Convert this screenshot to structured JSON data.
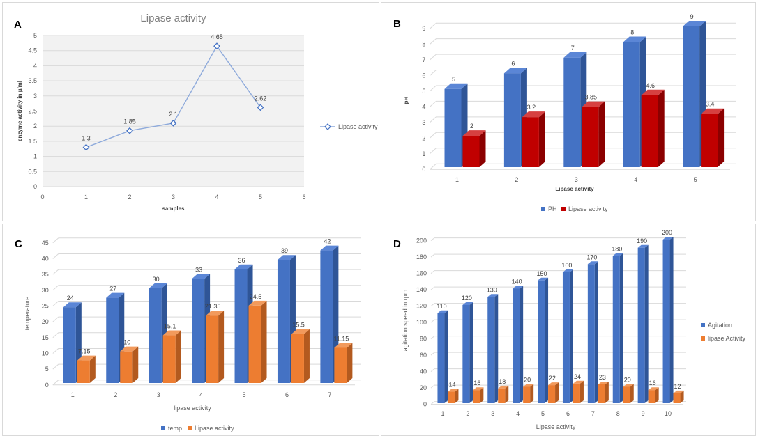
{
  "colors": {
    "line": "#8eaadb",
    "marker": "#4472c4",
    "blue_front": "#4472c4",
    "blue_side": "#2f5597",
    "blue_top": "#5b86d6",
    "red_front": "#c00000",
    "red_side": "#8b0000",
    "red_top": "#d64040",
    "orange_front": "#ed7d31",
    "orange_side": "#b35a1f",
    "orange_top": "#f29a5c",
    "grid": "#d9d9d9"
  },
  "chart_data": [
    {
      "id": "A",
      "panel_letter": "A",
      "type": "line",
      "title": "Lipase activity",
      "xlabel": "samples",
      "ylabel": "enzyme activity in µ/ml",
      "x": [
        1,
        2,
        3,
        4,
        5
      ],
      "xlim": [
        0,
        6
      ],
      "xticks": [
        "0",
        "1",
        "2",
        "3",
        "4",
        "5",
        "6"
      ],
      "ylim": [
        0,
        5
      ],
      "yticks": [
        "0",
        "0.5",
        "1",
        "1.5",
        "2",
        "2.5",
        "3",
        "3.5",
        "4",
        "4.5",
        "5"
      ],
      "series": [
        {
          "name": "Lipase activity",
          "values": [
            1.3,
            1.85,
            2.1,
            4.65,
            2.62
          ],
          "labels": [
            "1.3",
            "1.85",
            "2.1",
            "4.65",
            "2.62"
          ]
        }
      ],
      "grid": true,
      "legend": "right"
    },
    {
      "id": "B",
      "panel_letter": "B",
      "type": "bar",
      "title": "",
      "xlabel": "Lipase activity",
      "ylabel": "pH",
      "categories": [
        "1",
        "2",
        "3",
        "4",
        "5"
      ],
      "ylim": [
        0,
        9
      ],
      "yticks": [
        "0",
        "1",
        "2",
        "3",
        "4",
        "5",
        "6",
        "7",
        "8",
        "9"
      ],
      "series": [
        {
          "name": "PH",
          "values": [
            5,
            6,
            7,
            8,
            9
          ],
          "labels": [
            "5",
            "6",
            "7",
            "8",
            "9"
          ]
        },
        {
          "name": "Lipase activity",
          "values": [
            2,
            3.2,
            3.85,
            4.6,
            3.4
          ],
          "labels": [
            "2",
            "3.2",
            "3.85",
            "4.6",
            "3.4"
          ]
        }
      ],
      "grid": true,
      "legend": "bottom"
    },
    {
      "id": "C",
      "panel_letter": "C",
      "type": "bar",
      "title": "",
      "xlabel": "lipase activity",
      "ylabel": "temperature",
      "categories": [
        "1",
        "2",
        "3",
        "4",
        "5",
        "6",
        "7"
      ],
      "ylim": [
        0,
        45
      ],
      "yticks": [
        "0",
        "5",
        "10",
        "15",
        "20",
        "25",
        "30",
        "35",
        "40",
        "45"
      ],
      "series": [
        {
          "name": "temp",
          "values": [
            24,
            27,
            30,
            33,
            36,
            39,
            42
          ],
          "labels": [
            "24",
            "27",
            "30",
            "33",
            "36",
            "39",
            "42"
          ]
        },
        {
          "name": "Lipase activity",
          "values": [
            7.15,
            10,
            15.1,
            21.35,
            24.5,
            15.5,
            11.15
          ],
          "labels": [
            "7.15",
            "10",
            "15.1",
            "21.35",
            "24.5",
            "15.5",
            "11.15"
          ]
        }
      ],
      "grid": true,
      "legend": "bottom"
    },
    {
      "id": "D",
      "panel_letter": "D",
      "type": "bar",
      "title": "",
      "xlabel": "Lipase activity",
      "ylabel": "agitation speed in rpm",
      "categories": [
        "1",
        "2",
        "3",
        "4",
        "5",
        "6",
        "7",
        "8",
        "9",
        "10"
      ],
      "ylim": [
        0,
        200
      ],
      "yticks": [
        "0",
        "20",
        "40",
        "60",
        "80",
        "100",
        "120",
        "140",
        "160",
        "180",
        "200"
      ],
      "series": [
        {
          "name": "Agitation",
          "values": [
            110,
            120,
            130,
            140,
            150,
            160,
            170,
            180,
            190,
            200
          ],
          "labels": [
            "110",
            "120",
            "130",
            "140",
            "150",
            "160",
            "170",
            "180",
            "190",
            "200"
          ]
        },
        {
          "name": "lipase Activity",
          "values": [
            14,
            16,
            18,
            20,
            22,
            24,
            23,
            20,
            16,
            12
          ],
          "labels": [
            "14",
            "16",
            "18",
            "20",
            "22",
            "24",
            "23",
            "20",
            "16",
            "12"
          ]
        }
      ],
      "grid": true,
      "legend": "right"
    }
  ]
}
